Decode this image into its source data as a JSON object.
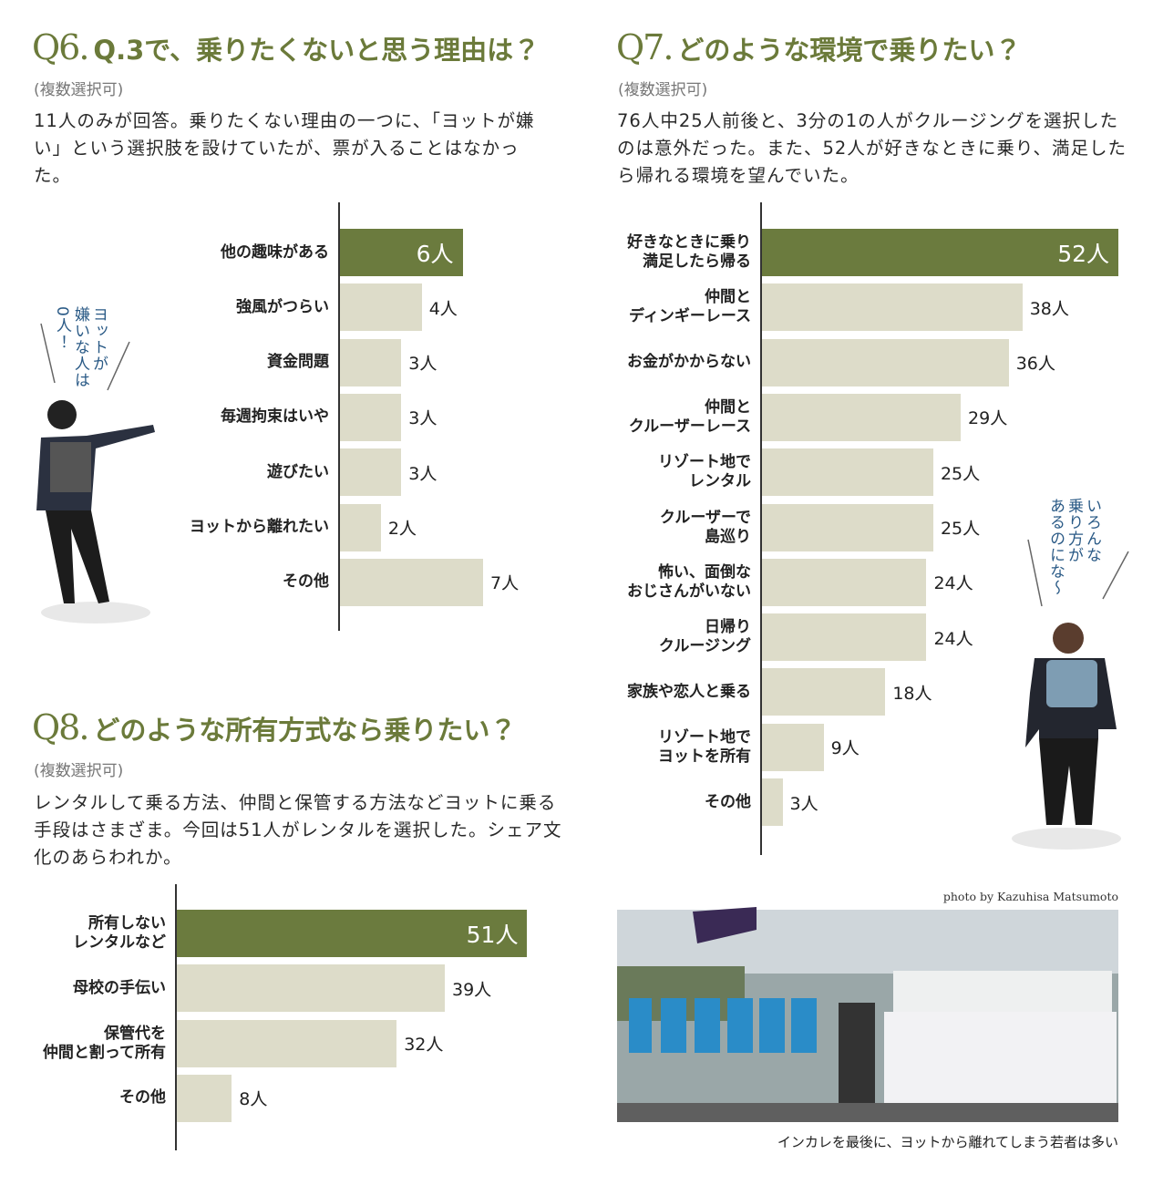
{
  "chart_data": [
    {
      "type": "bar",
      "number": "Q6.",
      "title": "Q.3で、乗りたくないと思う理由は？",
      "subtitle": "(複数選択可)",
      "description": "11人のみが回答。乗りたくない理由の一つに、「ヨットが嫌い」という選択肢を設けていたが、票が入ることはなかった。",
      "annotation": "ヨットが\n嫌いな人は\n0人！",
      "categories": [
        "他の趣味がある",
        "強風がつらい",
        "資金問題",
        "毎週拘束はいや",
        "遊びたい",
        "ヨットから離れたい",
        "その他"
      ],
      "values": [
        6,
        4,
        3,
        3,
        3,
        2,
        7
      ],
      "value_labels": [
        "6人",
        "4人",
        "3人",
        "3人",
        "3人",
        "2人",
        "7人"
      ],
      "colors": [
        "#6b7b3e",
        "#dddcc9",
        "#dddcc9",
        "#dddcc9",
        "#dddcc9",
        "#dddcc9",
        "#dddcc9"
      ],
      "xlim": [
        0,
        7
      ]
    },
    {
      "type": "bar",
      "number": "Q7.",
      "title": "どのような環境で乗りたい？",
      "subtitle": "(複数選択可)",
      "description": "76人中25人前後と、3分の1の人がクルージングを選択したのは意外だった。また、52人が好きなときに乗り、満足したら帰れる環境を望んでいた。",
      "annotation": "いろんな\n乗り方が\nあるのにな〜",
      "categories": [
        "好きなときに乗り\n満足したら帰る",
        "仲間と\nディンギーレース",
        "お金がかからない",
        "仲間と\nクルーザーレース",
        "リゾート地で\nレンタル",
        "クルーザーで\n島巡り",
        "怖い、面倒な\nおじさんがいない",
        "日帰り\nクルージング",
        "家族や恋人と乗る",
        "リゾート地で\nヨットを所有",
        "その他"
      ],
      "values": [
        52,
        38,
        36,
        29,
        25,
        25,
        24,
        24,
        18,
        9,
        3
      ],
      "value_labels": [
        "52人",
        "38人",
        "36人",
        "29人",
        "25人",
        "25人",
        "24人",
        "24人",
        "18人",
        "9人",
        "3人"
      ],
      "colors": [
        "#6b7b3e",
        "#dddcc9",
        "#dddcc9",
        "#dddcc9",
        "#dddcc9",
        "#dddcc9",
        "#dddcc9",
        "#dddcc9",
        "#dddcc9",
        "#dddcc9",
        "#dddcc9"
      ],
      "xlim": [
        0,
        52
      ]
    },
    {
      "type": "bar",
      "number": "Q8.",
      "title": "どのような所有方式なら乗りたい？",
      "subtitle": "(複数選択可)",
      "description": "レンタルして乗る方法、仲間と保管する方法などヨットに乗る手段はさまざま。今回は51人がレンタルを選択した。シェア文化のあらわれか。",
      "categories": [
        "所有しない\nレンタルなど",
        "母校の手伝い",
        "保管代を\n仲間と割って所有",
        "その他"
      ],
      "values": [
        51,
        39,
        32,
        8
      ],
      "value_labels": [
        "51人",
        "39人",
        "32人",
        "8人"
      ],
      "colors": [
        "#6b7b3e",
        "#dddcc9",
        "#dddcc9",
        "#dddcc9"
      ],
      "xlim": [
        0,
        52
      ]
    }
  ],
  "photo_credit": "photo by Kazuhisa Matsumoto",
  "caption": "インカレを最後に、ヨットから離れてしまう若者は多い"
}
